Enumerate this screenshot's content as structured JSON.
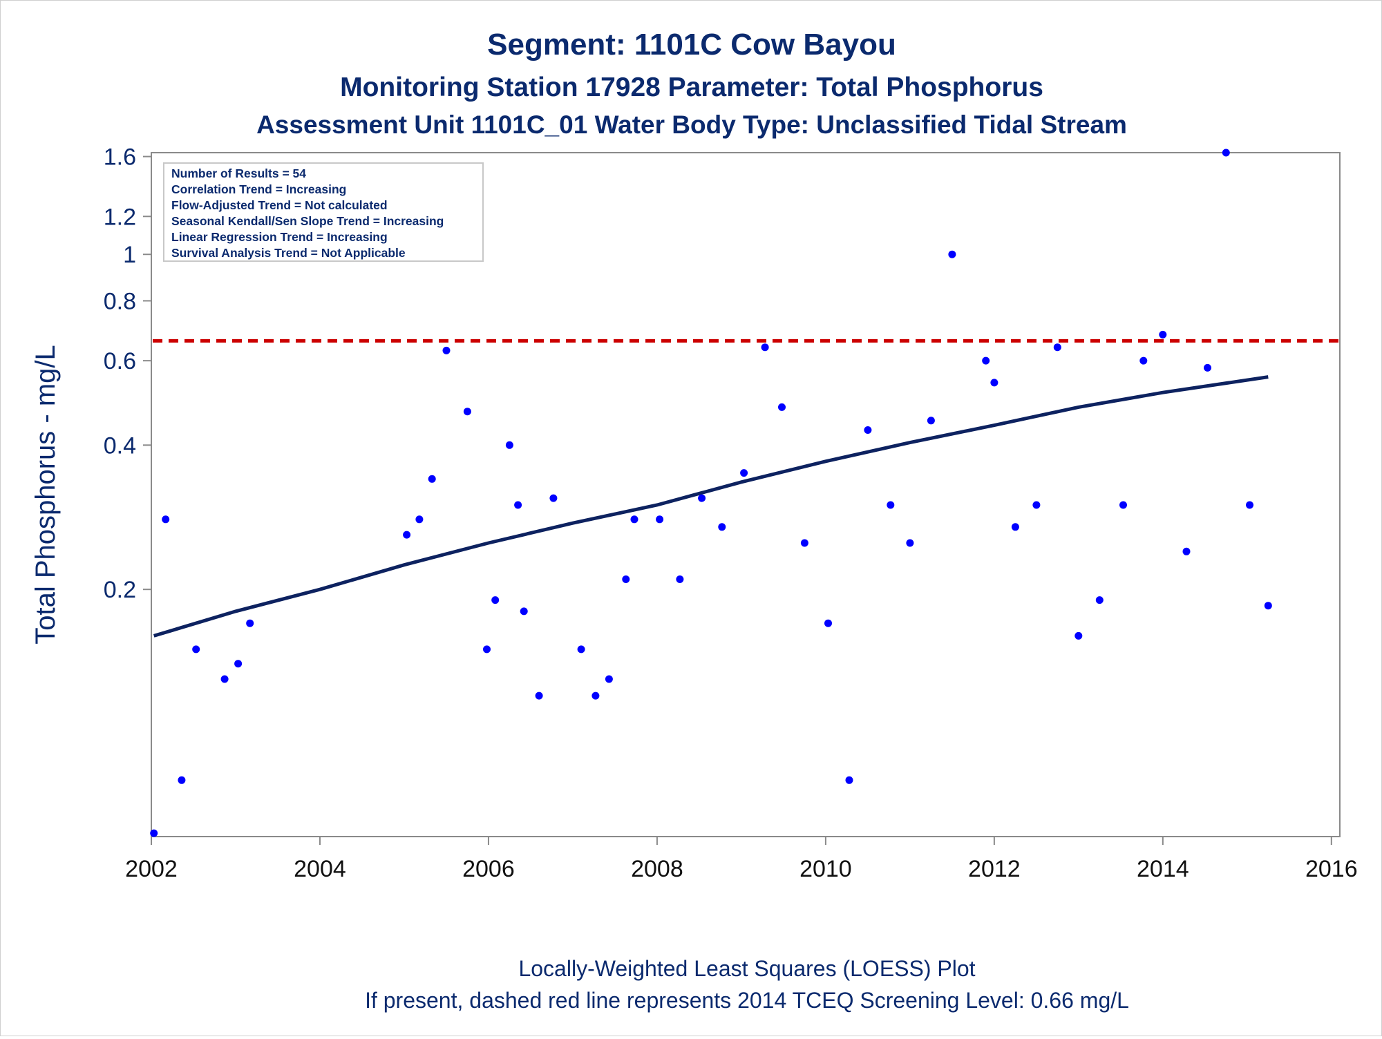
{
  "chart_data": {
    "type": "scatter",
    "title": "Segment: 1101C  Cow Bayou",
    "subtitle": "Monitoring Station 17928 Parameter: Total Phosphorus",
    "subtitle2": "Assessment Unit 1101C_01   Water Body Type: Unclassified Tidal Stream",
    "ylabel": "Total Phosphorus - mg/L",
    "xlabel": "",
    "yscale": "log",
    "ylim": [
      0.061,
      1.63
    ],
    "xlim": [
      2002.0,
      2016.1
    ],
    "yticks": [
      "0.2",
      "0.4",
      "0.6",
      "0.8",
      "1",
      "1.2",
      "1.6"
    ],
    "xticks": [
      "2002",
      "2004",
      "2006",
      "2008",
      "2010",
      "2012",
      "2014",
      "2016"
    ],
    "grid": false,
    "stats_box": {
      "lines": [
        "Number of Results = 54",
        "Correlation Trend = Increasing",
        "Flow-Adjusted Trend = Not calculated",
        "Seasonal Kendall/Sen Slope Trend = Increasing",
        "Linear Regression Trend = Increasing",
        "Survival Analysis Trend = Not Applicable"
      ],
      "position": "top-left"
    },
    "screening_level": {
      "value": 0.66,
      "style": "dashed",
      "color": "#cc0000"
    },
    "footnote1": "Locally-Weighted Least Squares (LOESS) Plot",
    "footnote2": "If present, dashed red line represents 2014 TCEQ Screening Level: 0.66 mg/L",
    "series": [
      {
        "kind": "points",
        "color": "#0000ff",
        "points": [
          [
            2002.03,
            0.062
          ],
          [
            2002.17,
            0.28
          ],
          [
            2002.36,
            0.08
          ],
          [
            2002.53,
            0.15
          ],
          [
            2002.87,
            0.13
          ],
          [
            2003.03,
            0.14
          ],
          [
            2003.17,
            0.17
          ],
          [
            2005.03,
            0.26
          ],
          [
            2005.18,
            0.28
          ],
          [
            2005.33,
            0.34
          ],
          [
            2005.5,
            0.63
          ],
          [
            2005.75,
            0.47
          ],
          [
            2005.98,
            0.15
          ],
          [
            2006.08,
            0.19
          ],
          [
            2006.25,
            0.4
          ],
          [
            2006.35,
            0.3
          ],
          [
            2006.42,
            0.18
          ],
          [
            2006.6,
            0.12
          ],
          [
            2006.77,
            0.31
          ],
          [
            2007.1,
            0.15
          ],
          [
            2007.27,
            0.12
          ],
          [
            2007.43,
            0.13
          ],
          [
            2007.63,
            0.21
          ],
          [
            2007.73,
            0.28
          ],
          [
            2008.03,
            0.28
          ],
          [
            2008.27,
            0.21
          ],
          [
            2008.53,
            0.31
          ],
          [
            2008.77,
            0.27
          ],
          [
            2009.03,
            0.35
          ],
          [
            2009.28,
            0.64
          ],
          [
            2009.48,
            0.48
          ],
          [
            2009.75,
            0.25
          ],
          [
            2010.03,
            0.17
          ],
          [
            2010.28,
            0.08
          ],
          [
            2010.5,
            0.43
          ],
          [
            2010.77,
            0.3
          ],
          [
            2011.0,
            0.25
          ],
          [
            2011.25,
            0.45
          ],
          [
            2011.5,
            1.0
          ],
          [
            2011.9,
            0.6
          ],
          [
            2012.0,
            0.54
          ],
          [
            2012.25,
            0.27
          ],
          [
            2012.5,
            0.3
          ],
          [
            2012.75,
            0.64
          ],
          [
            2013.0,
            0.16
          ],
          [
            2013.25,
            0.19
          ],
          [
            2013.53,
            0.3
          ],
          [
            2013.77,
            0.6
          ],
          [
            2014.0,
            0.68
          ],
          [
            2014.28,
            0.24
          ],
          [
            2014.53,
            0.58
          ],
          [
            2014.75,
            1.63
          ],
          [
            2015.03,
            0.3
          ],
          [
            2015.25,
            0.185
          ]
        ]
      },
      {
        "kind": "loess",
        "color": "#0d2260",
        "points": [
          [
            2002.03,
            0.16
          ],
          [
            2003.0,
            0.18
          ],
          [
            2004.0,
            0.2
          ],
          [
            2005.0,
            0.225
          ],
          [
            2006.0,
            0.25
          ],
          [
            2007.0,
            0.275
          ],
          [
            2008.0,
            0.3
          ],
          [
            2009.0,
            0.335
          ],
          [
            2010.0,
            0.37
          ],
          [
            2011.0,
            0.405
          ],
          [
            2012.0,
            0.44
          ],
          [
            2013.0,
            0.48
          ],
          [
            2014.0,
            0.515
          ],
          [
            2015.25,
            0.555
          ]
        ]
      }
    ]
  }
}
